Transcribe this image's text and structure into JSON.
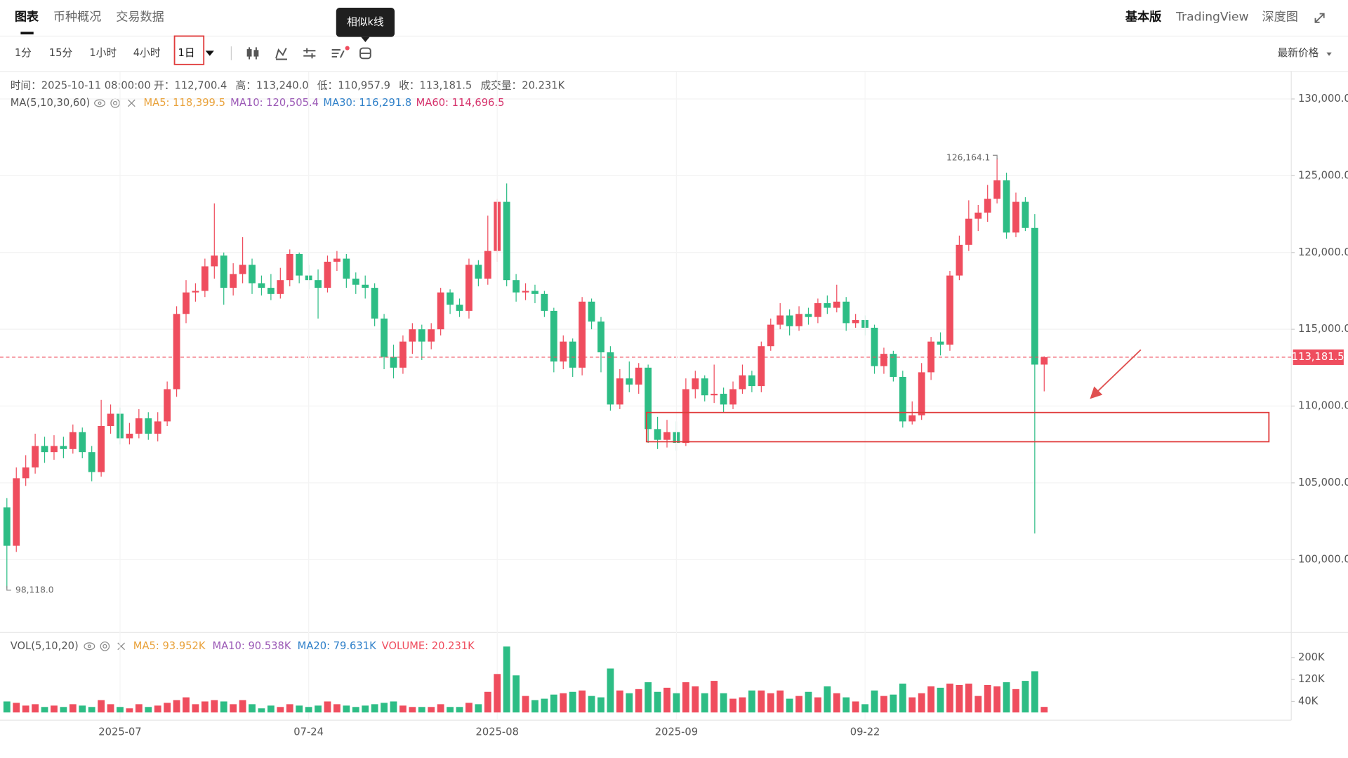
{
  "tabs": [
    "图表",
    "币种概况",
    "交易数据"
  ],
  "top_right": [
    "基本版",
    "TradingView",
    "深度图"
  ],
  "intervals": [
    "1分",
    "15分",
    "1小时",
    "4小时",
    "1日"
  ],
  "tooltip": "相似k线",
  "price_type": "最新价格",
  "chart_data": [
    {
      "type": "candlestick",
      "info": [
        "时间：2025-10-11 08:00:00",
        "开：112,700.4",
        "高：113,240.0",
        "低：110,957.9",
        "收：113,181.5",
        "成交量：20.231K"
      ],
      "legend": {
        "name": "MA(5,10,30,60)",
        "items": [
          {
            "text": "MA5: 118,399.5",
            "color": "#e9a23b"
          },
          {
            "text": "MA10: 120,505.4",
            "color": "#9b59b6"
          },
          {
            "text": "MA30: 116,291.8",
            "color": "#2f80c9"
          },
          {
            "text": "MA60: 114,696.5",
            "color": "#d6336c"
          }
        ]
      },
      "up_color": "#ef4d5e",
      "down_color": "#2dbd85",
      "open": [
        103400,
        100900,
        105300,
        106000,
        107400,
        107000,
        107400,
        107200,
        108300,
        107000,
        105700,
        108700,
        109500,
        107900,
        108200,
        109200,
        108200,
        109000,
        111100,
        116000,
        117400,
        117500,
        119100,
        119800,
        117700,
        118600,
        119200,
        118000,
        117700,
        117300,
        118200,
        119900,
        118500,
        118200,
        117700,
        119400,
        119600,
        118300,
        117900,
        117700,
        115700,
        113200,
        112500,
        114200,
        115000,
        114200,
        115000,
        117400,
        116600,
        116200,
        119200,
        118300,
        120100,
        123300,
        118200,
        117400,
        117500,
        117300,
        116200,
        112900,
        114200,
        112500,
        116800,
        115500,
        113500,
        110100,
        111800,
        111400,
        112500,
        108500,
        107800,
        108300,
        107600,
        111100,
        111800,
        110700,
        110800,
        110100,
        111100,
        112000,
        111300,
        113900,
        115300,
        115900,
        115200,
        116000,
        115800,
        116700,
        116400,
        116800,
        115400,
        115600,
        115100,
        112600,
        113400,
        111900,
        109000,
        109400,
        112200,
        114200,
        114000,
        118500,
        120500,
        122200,
        122600,
        123500,
        124700,
        121300,
        123300,
        121600,
        112700.4
      ],
      "high": [
        104000,
        106000,
        106800,
        108200,
        108000,
        108100,
        108000,
        108800,
        108600,
        107400,
        110400,
        110100,
        109900,
        108900,
        109800,
        109600,
        109600,
        111600,
        116500,
        118200,
        118000,
        119600,
        123200,
        120000,
        119300,
        121000,
        119600,
        118500,
        118600,
        119000,
        120200,
        120000,
        119200,
        118900,
        119800,
        120100,
        119900,
        118700,
        118500,
        118000,
        116000,
        114000,
        114600,
        115400,
        115300,
        115400,
        117700,
        117600,
        117000,
        119600,
        119500,
        122400,
        123500,
        124500,
        118600,
        118000,
        117900,
        117500,
        116400,
        114600,
        114400,
        117100,
        117000,
        115800,
        113900,
        112400,
        112900,
        112800,
        112700,
        109300,
        109100,
        109000,
        111800,
        112300,
        112000,
        112700,
        111200,
        111600,
        112700,
        112300,
        114200,
        115700,
        116700,
        116300,
        116500,
        116400,
        117000,
        117200,
        117900,
        117100,
        116000,
        115900,
        115300,
        113800,
        113600,
        112300,
        110300,
        112800,
        114500,
        114800,
        118800,
        121100,
        123400,
        123100,
        124400,
        126164.1,
        125200,
        123900,
        123600,
        122500,
        113240
      ],
      "low": [
        98118,
        100500,
        104800,
        105600,
        106300,
        106500,
        106600,
        106900,
        106600,
        105100,
        105400,
        108200,
        107500,
        107500,
        107900,
        107800,
        107700,
        108700,
        110600,
        115400,
        116800,
        117100,
        118300,
        116600,
        117200,
        118000,
        117300,
        117200,
        116900,
        117000,
        117800,
        118000,
        117600,
        115700,
        117400,
        118800,
        117700,
        117300,
        117000,
        115200,
        112400,
        111800,
        112100,
        113400,
        113000,
        113700,
        114600,
        116000,
        115800,
        115700,
        117800,
        117900,
        119400,
        117800,
        116800,
        116900,
        116700,
        115800,
        112200,
        112400,
        111900,
        112000,
        115000,
        112200,
        109700,
        109800,
        110900,
        110800,
        107600,
        107200,
        107300,
        107100,
        107400,
        110500,
        110300,
        110200,
        109600,
        109800,
        110800,
        110900,
        110900,
        113600,
        115000,
        114600,
        114900,
        115300,
        115400,
        116000,
        116100,
        114900,
        115100,
        114600,
        112100,
        112100,
        111600,
        108600,
        108800,
        109100,
        111700,
        113300,
        113600,
        118200,
        120100,
        121400,
        122000,
        123200,
        120900,
        121000,
        121400,
        101700,
        110957.9
      ],
      "close": [
        100900,
        105300,
        106000,
        107400,
        107000,
        107400,
        107200,
        108300,
        107000,
        105700,
        108700,
        109500,
        107900,
        108200,
        109200,
        108200,
        109000,
        111100,
        116000,
        117400,
        117500,
        119100,
        119800,
        117700,
        118600,
        119200,
        118000,
        117700,
        117300,
        118200,
        119900,
        118500,
        118200,
        117700,
        119400,
        119600,
        118300,
        117900,
        117700,
        115700,
        113200,
        112500,
        114200,
        115000,
        114200,
        115000,
        117400,
        116600,
        116200,
        119200,
        118300,
        120100,
        123300,
        118200,
        117400,
        117500,
        117300,
        116200,
        112900,
        114200,
        112500,
        116800,
        115500,
        113500,
        110100,
        111800,
        111400,
        112500,
        108500,
        107800,
        108300,
        107600,
        111100,
        111800,
        110700,
        110800,
        110100,
        111100,
        112000,
        111300,
        113900,
        115300,
        115900,
        115200,
        116000,
        115800,
        116700,
        116400,
        116800,
        115400,
        115600,
        115100,
        112600,
        113400,
        111900,
        109000,
        109400,
        112200,
        114200,
        114000,
        118500,
        120500,
        122200,
        122600,
        123500,
        124700,
        121300,
        123300,
        121600,
        112700,
        113181.5
      ],
      "annotations": [
        "126,164.1",
        "98,118.0"
      ],
      "last_price": 113181.5,
      "last_price_label": "113,181.5",
      "xlim": [
        -0.73,
        136.2
      ],
      "ylim": [
        95250,
        131800
      ],
      "yticks": [
        {
          "value": 100000,
          "label": "100,000.0"
        },
        {
          "value": 105000,
          "label": "105,000.0"
        },
        {
          "value": 110000,
          "label": "110,000.0"
        },
        {
          "value": 115000,
          "label": "115,000.0"
        },
        {
          "value": 120000,
          "label": "120,000.0"
        },
        {
          "value": 125000,
          "label": "125,000.0"
        },
        {
          "value": 130000,
          "label": "130,000.0"
        }
      ],
      "grid": true
    },
    {
      "type": "bar",
      "legend": {
        "name": "VOL(5,10,20)",
        "items": [
          {
            "text": "MA5: 93.952K",
            "color": "#e9a23b"
          },
          {
            "text": "MA10: 90.538K",
            "color": "#9b59b6"
          },
          {
            "text": "MA20: 79.631K",
            "color": "#2f80c9"
          },
          {
            "text": "VOLUME: 20.231K",
            "color": "#ef4d5e"
          }
        ]
      },
      "values": [
        40000,
        35000,
        25000,
        30000,
        20000,
        25000,
        20000,
        30000,
        25000,
        20000,
        45000,
        30000,
        20000,
        15000,
        30000,
        20000,
        25000,
        35000,
        45000,
        55000,
        30000,
        40000,
        45000,
        40000,
        30000,
        45000,
        30000,
        15000,
        25000,
        20000,
        30000,
        25000,
        20000,
        25000,
        40000,
        30000,
        25000,
        20000,
        25000,
        30000,
        35000,
        40000,
        25000,
        20000,
        20000,
        20000,
        30000,
        20000,
        20000,
        35000,
        30000,
        75000,
        140000,
        240000,
        135000,
        60000,
        45000,
        50000,
        65000,
        70000,
        75000,
        80000,
        60000,
        55000,
        160000,
        80000,
        70000,
        85000,
        110000,
        75000,
        90000,
        70000,
        110000,
        95000,
        70000,
        115000,
        70000,
        50000,
        55000,
        80000,
        80000,
        70000,
        80000,
        50000,
        60000,
        75000,
        55000,
        95000,
        70000,
        55000,
        40000,
        30000,
        80000,
        60000,
        65000,
        105000,
        55000,
        70000,
        95000,
        90000,
        105000,
        100000,
        105000,
        60000,
        100000,
        95000,
        110000,
        85000,
        115000,
        150000,
        20231
      ],
      "xlim": [
        -0.73,
        136.2
      ],
      "xticks": [
        {
          "value": 12,
          "label": "2025-07"
        },
        {
          "value": 32,
          "label": "07-24"
        },
        {
          "value": 52,
          "label": "2025-08"
        },
        {
          "value": 71,
          "label": "2025-09"
        },
        {
          "value": 91,
          "label": "09-22"
        }
      ],
      "ylim": [
        0,
        291000
      ],
      "yticks": [
        {
          "value": 40000,
          "label": "40K"
        },
        {
          "value": 120000,
          "label": "120K"
        },
        {
          "value": 200000,
          "label": "200K"
        }
      ],
      "grid": true
    }
  ]
}
